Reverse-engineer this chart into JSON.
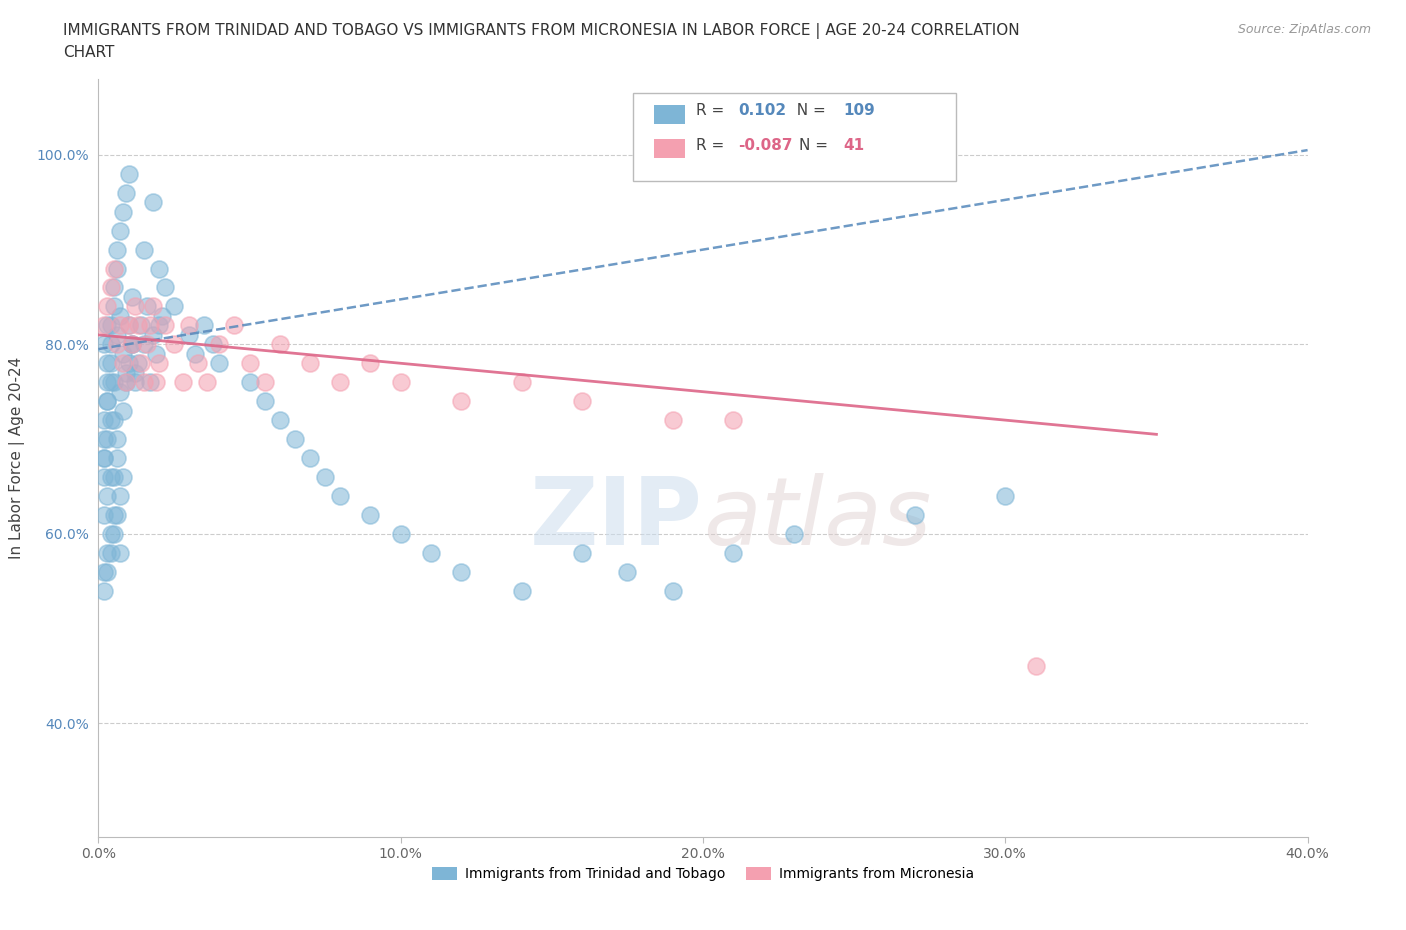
{
  "title_line1": "IMMIGRANTS FROM TRINIDAD AND TOBAGO VS IMMIGRANTS FROM MICRONESIA IN LABOR FORCE | AGE 20-24 CORRELATION",
  "title_line2": "CHART",
  "source_text": "Source: ZipAtlas.com",
  "ylabel": "In Labor Force | Age 20-24",
  "watermark": "ZIPatlas",
  "r1_val": "0.102",
  "n1_val": "109",
  "r2_val": "-0.087",
  "n2_val": "41",
  "xlim": [
    0.0,
    0.4
  ],
  "ylim": [
    0.28,
    1.08
  ],
  "xtick_labels": [
    "0.0%",
    "10.0%",
    "20.0%",
    "30.0%",
    "40.0%"
  ],
  "xtick_vals": [
    0.0,
    0.1,
    0.2,
    0.3,
    0.4
  ],
  "ytick_labels": [
    "40.0%",
    "60.0%",
    "80.0%",
    "100.0%"
  ],
  "ytick_vals": [
    0.4,
    0.6,
    0.8,
    1.0
  ],
  "color_blue": "#7EB5D6",
  "color_pink": "#F4A0B0",
  "trendline_blue_color": "#5588BB",
  "trendline_pink_color": "#DD6688",
  "blue_x": [
    0.002,
    0.003,
    0.004,
    0.005,
    0.006,
    0.007,
    0.008,
    0.009,
    0.01,
    0.011,
    0.012,
    0.013,
    0.014,
    0.015,
    0.016,
    0.017,
    0.018,
    0.019,
    0.02,
    0.021,
    0.003,
    0.004,
    0.005,
    0.006,
    0.007,
    0.008,
    0.009,
    0.01,
    0.011,
    0.012,
    0.002,
    0.003,
    0.004,
    0.005,
    0.006,
    0.007,
    0.008,
    0.002,
    0.003,
    0.004,
    0.005,
    0.006,
    0.007,
    0.002,
    0.003,
    0.004,
    0.005,
    0.002,
    0.003,
    0.004,
    0.015,
    0.018,
    0.02,
    0.022,
    0.025,
    0.03,
    0.032,
    0.035,
    0.038,
    0.04,
    0.05,
    0.055,
    0.06,
    0.065,
    0.07,
    0.075,
    0.08,
    0.09,
    0.1,
    0.11,
    0.12,
    0.14,
    0.16,
    0.175,
    0.19,
    0.21,
    0.23,
    0.27,
    0.3,
    0.002,
    0.002,
    0.002,
    0.002,
    0.003,
    0.003,
    0.003,
    0.004,
    0.004,
    0.005,
    0.005,
    0.006,
    0.006,
    0.007,
    0.008,
    0.009,
    0.01,
    0.011
  ],
  "blue_y": [
    0.8,
    0.82,
    0.78,
    0.76,
    0.81,
    0.83,
    0.79,
    0.77,
    0.82,
    0.8,
    0.76,
    0.78,
    0.82,
    0.8,
    0.84,
    0.76,
    0.81,
    0.79,
    0.82,
    0.83,
    0.74,
    0.76,
    0.72,
    0.7,
    0.75,
    0.73,
    0.76,
    0.78,
    0.8,
    0.77,
    0.68,
    0.7,
    0.72,
    0.66,
    0.68,
    0.64,
    0.66,
    0.62,
    0.64,
    0.66,
    0.6,
    0.62,
    0.58,
    0.56,
    0.58,
    0.6,
    0.62,
    0.54,
    0.56,
    0.58,
    0.9,
    0.95,
    0.88,
    0.86,
    0.84,
    0.81,
    0.79,
    0.82,
    0.8,
    0.78,
    0.76,
    0.74,
    0.72,
    0.7,
    0.68,
    0.66,
    0.64,
    0.62,
    0.6,
    0.58,
    0.56,
    0.54,
    0.58,
    0.56,
    0.54,
    0.58,
    0.6,
    0.62,
    0.64,
    0.72,
    0.68,
    0.66,
    0.7,
    0.74,
    0.76,
    0.78,
    0.8,
    0.82,
    0.84,
    0.86,
    0.88,
    0.9,
    0.92,
    0.94,
    0.96,
    0.98,
    0.85
  ],
  "pink_x": [
    0.002,
    0.003,
    0.004,
    0.005,
    0.006,
    0.007,
    0.008,
    0.009,
    0.01,
    0.011,
    0.012,
    0.013,
    0.014,
    0.015,
    0.016,
    0.017,
    0.018,
    0.019,
    0.02,
    0.022,
    0.025,
    0.028,
    0.03,
    0.033,
    0.036,
    0.04,
    0.045,
    0.05,
    0.055,
    0.06,
    0.07,
    0.08,
    0.09,
    0.1,
    0.12,
    0.14,
    0.16,
    0.19,
    0.21,
    0.31
  ],
  "pink_y": [
    0.82,
    0.84,
    0.86,
    0.88,
    0.8,
    0.82,
    0.78,
    0.76,
    0.82,
    0.8,
    0.84,
    0.82,
    0.78,
    0.76,
    0.8,
    0.82,
    0.84,
    0.76,
    0.78,
    0.82,
    0.8,
    0.76,
    0.82,
    0.78,
    0.76,
    0.8,
    0.82,
    0.78,
    0.76,
    0.8,
    0.78,
    0.76,
    0.78,
    0.76,
    0.74,
    0.76,
    0.74,
    0.72,
    0.72,
    0.46
  ],
  "blue_trend_x": [
    0.0,
    0.4
  ],
  "blue_trend_y": [
    0.795,
    1.005
  ],
  "pink_trend_x": [
    0.0,
    0.35
  ],
  "pink_trend_y": [
    0.81,
    0.705
  ],
  "title_fontsize": 11,
  "source_fontsize": 9,
  "tick_fontsize": 10,
  "ylabel_fontsize": 11
}
